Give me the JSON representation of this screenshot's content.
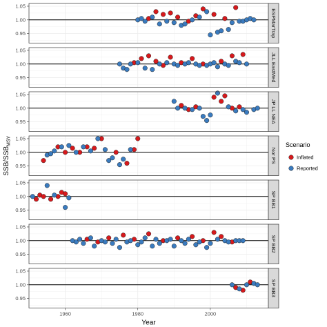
{
  "chart_data": {
    "type": "scatter",
    "xlabel": "Year",
    "ylabel": {
      "main": "SSB/SSB",
      "sub": "MSY"
    },
    "xlim": [
      1950,
      2016
    ],
    "xticks": [
      1960,
      1980,
      2000
    ],
    "ylim": [
      0.915,
      1.06
    ],
    "yticks": [
      0.95,
      1.0,
      1.05
    ],
    "reference_line_y": 1.0,
    "grid": true,
    "legend": {
      "title": "Scenario",
      "position": "right",
      "entries": [
        {
          "name": "Inflated",
          "color": "#d7191c"
        },
        {
          "name": "Reported",
          "color": "#3a7bbf"
        }
      ]
    },
    "panels": [
      {
        "label": "ESPMarTrap",
        "series": [
          {
            "name": "Inflated",
            "x": [
              1983,
              1985,
              1987,
              1989,
              1991,
              1994,
              1996,
              1998,
              2001,
              2004,
              2007
            ],
            "y": [
              1.005,
              1.03,
              1.02,
              1.025,
              1.01,
              0.995,
              1.015,
              1.04,
              1.02,
              1.005,
              1.045
            ]
          },
          {
            "name": "Reported",
            "x": [
              1980,
              1981,
              1982,
              1984,
              1986,
              1988,
              1990,
              1992,
              1993,
              1995,
              1997,
              1999,
              2000,
              2002,
              2003,
              2005,
              2006,
              2008,
              2009,
              2010,
              2011,
              2012
            ],
            "y": [
              1.0,
              1.005,
              0.995,
              1.01,
              0.985,
              0.995,
              0.99,
              0.98,
              0.985,
              1.0,
              1.01,
              1.03,
              0.945,
              0.955,
              0.96,
              0.965,
              0.99,
              0.995,
              0.995,
              1.0,
              1.005,
              1.0
            ]
          }
        ]
      },
      {
        "label": "JLL EastMed",
        "series": [
          {
            "name": "Inflated",
            "x": [
              1979,
              1981,
              1983,
              1985,
              1987,
              1989,
              1992,
              1995,
              1998,
              2003,
              2006,
              2009
            ],
            "y": [
              1.005,
              1.02,
              1.03,
              1.01,
              0.995,
              1.025,
              1.005,
              1.02,
              1.0,
              1.01,
              1.03,
              1.035
            ]
          },
          {
            "name": "Reported",
            "x": [
              1975,
              1976,
              1977,
              1978,
              1980,
              1982,
              1984,
              1986,
              1988,
              1990,
              1991,
              1993,
              1994,
              1996,
              1997,
              1999,
              2000,
              2001,
              2002,
              2004,
              2005,
              2007,
              2008,
              2010
            ],
            "y": [
              1.0,
              0.985,
              0.98,
              1.0,
              1.005,
              0.985,
              0.98,
              1.0,
              1.005,
              1.0,
              0.995,
              1.0,
              1.005,
              1.0,
              0.995,
              0.995,
              1.0,
              1.005,
              0.99,
              1.0,
              0.995,
              1.01,
              1.005,
              1.0
            ]
          }
        ]
      },
      {
        "label": "JP LL NEA",
        "series": [
          {
            "name": "Inflated",
            "x": [
              1992,
              1994,
              1996,
              2001,
              2003,
              2004,
              2006,
              2008
            ],
            "y": [
              1.01,
              0.995,
              1.005,
              1.04,
              1.025,
              1.045,
              1.0,
              1.005
            ]
          },
          {
            "name": "Reported",
            "x": [
              1990,
              1991,
              1993,
              1995,
              1997,
              1998,
              1999,
              2000,
              2002,
              2005,
              2007,
              2009,
              2010,
              2012,
              2013
            ],
            "y": [
              1.025,
              1.0,
              1.0,
              0.995,
              1.0,
              0.97,
              0.955,
              0.975,
              1.055,
              1.005,
              0.99,
              0.995,
              0.985,
              0.995,
              1.0
            ]
          }
        ]
      },
      {
        "label": "Nor PS",
        "series": [
          {
            "name": "Inflated",
            "x": [
              1954,
              1958,
              1960,
              1962,
              1964,
              1966,
              1968,
              1970,
              1974,
              1977,
              1979,
              1980
            ],
            "y": [
              0.97,
              1.02,
              1.0,
              1.015,
              1.0,
              1.02,
              1.015,
              1.05,
              1.0,
              0.96,
              1.01,
              1.05
            ]
          },
          {
            "name": "Reported",
            "x": [
              1955,
              1956,
              1957,
              1959,
              1961,
              1963,
              1965,
              1967,
              1969,
              1971,
              1972,
              1973,
              1975,
              1976,
              1978
            ],
            "y": [
              0.99,
              0.995,
              1.005,
              1.02,
              1.025,
              1.0,
              1.02,
              1.005,
              1.05,
              1.01,
              0.97,
              0.98,
              0.955,
              0.975,
              1.01
            ]
          }
        ]
      },
      {
        "label": "SP BB1",
        "series": [
          {
            "name": "Inflated",
            "x": [
              1952,
              1953,
              1954,
              1956,
              1958,
              1959,
              1960
            ],
            "y": [
              0.99,
              1.005,
              1.0,
              0.99,
              1.0,
              1.015,
              1.01
            ]
          },
          {
            "name": "Reported",
            "x": [
              1951,
              1955,
              1957,
              1960,
              1961
            ],
            "y": [
              1.0,
              1.04,
              1.005,
              0.96,
              0.995
            ]
          }
        ]
      },
      {
        "label": "SP BB2",
        "series": [
          {
            "name": "Inflated",
            "x": [
              1966,
              1969,
              1972,
              1976,
              1979,
              1983,
              1987,
              1991,
              1995,
              1998,
              2001,
              2003,
              2006
            ],
            "y": [
              1.005,
              0.995,
              1.01,
              1.02,
              1.005,
              1.025,
              1.0,
              1.01,
              1.015,
              1.0,
              1.03,
              1.015,
              0.995
            ]
          },
          {
            "name": "Reported",
            "x": [
              1962,
              1963,
              1964,
              1965,
              1967,
              1968,
              1970,
              1971,
              1973,
              1974,
              1975,
              1977,
              1978,
              1980,
              1981,
              1982,
              1984,
              1985,
              1986,
              1988,
              1989,
              1990,
              1992,
              1993,
              1994,
              1996,
              1997,
              1999,
              2000,
              2002,
              2004,
              2005,
              2007,
              2008,
              2009
            ],
            "y": [
              1.0,
              0.995,
              1.005,
              0.99,
              1.01,
              0.98,
              1.0,
              0.995,
              0.99,
              1.005,
              0.975,
              0.995,
              1.0,
              0.985,
              0.995,
              1.01,
              0.98,
              1.005,
              0.99,
              1.0,
              1.005,
              0.98,
              1.0,
              0.99,
              1.005,
              0.985,
              0.995,
              0.975,
              0.99,
              1.005,
              1.0,
              0.995,
              1.0,
              1.0,
              1.0
            ]
          }
        ]
      },
      {
        "label": "SP BB3",
        "series": [
          {
            "name": "Inflated",
            "x": [
              2007,
              2009,
              2011
            ],
            "y": [
              0.99,
              0.98,
              1.01
            ]
          },
          {
            "name": "Reported",
            "x": [
              2006,
              2008,
              2010,
              2012,
              2013
            ],
            "y": [
              1.0,
              0.985,
              1.0,
              1.005,
              1.0
            ]
          }
        ]
      }
    ]
  }
}
